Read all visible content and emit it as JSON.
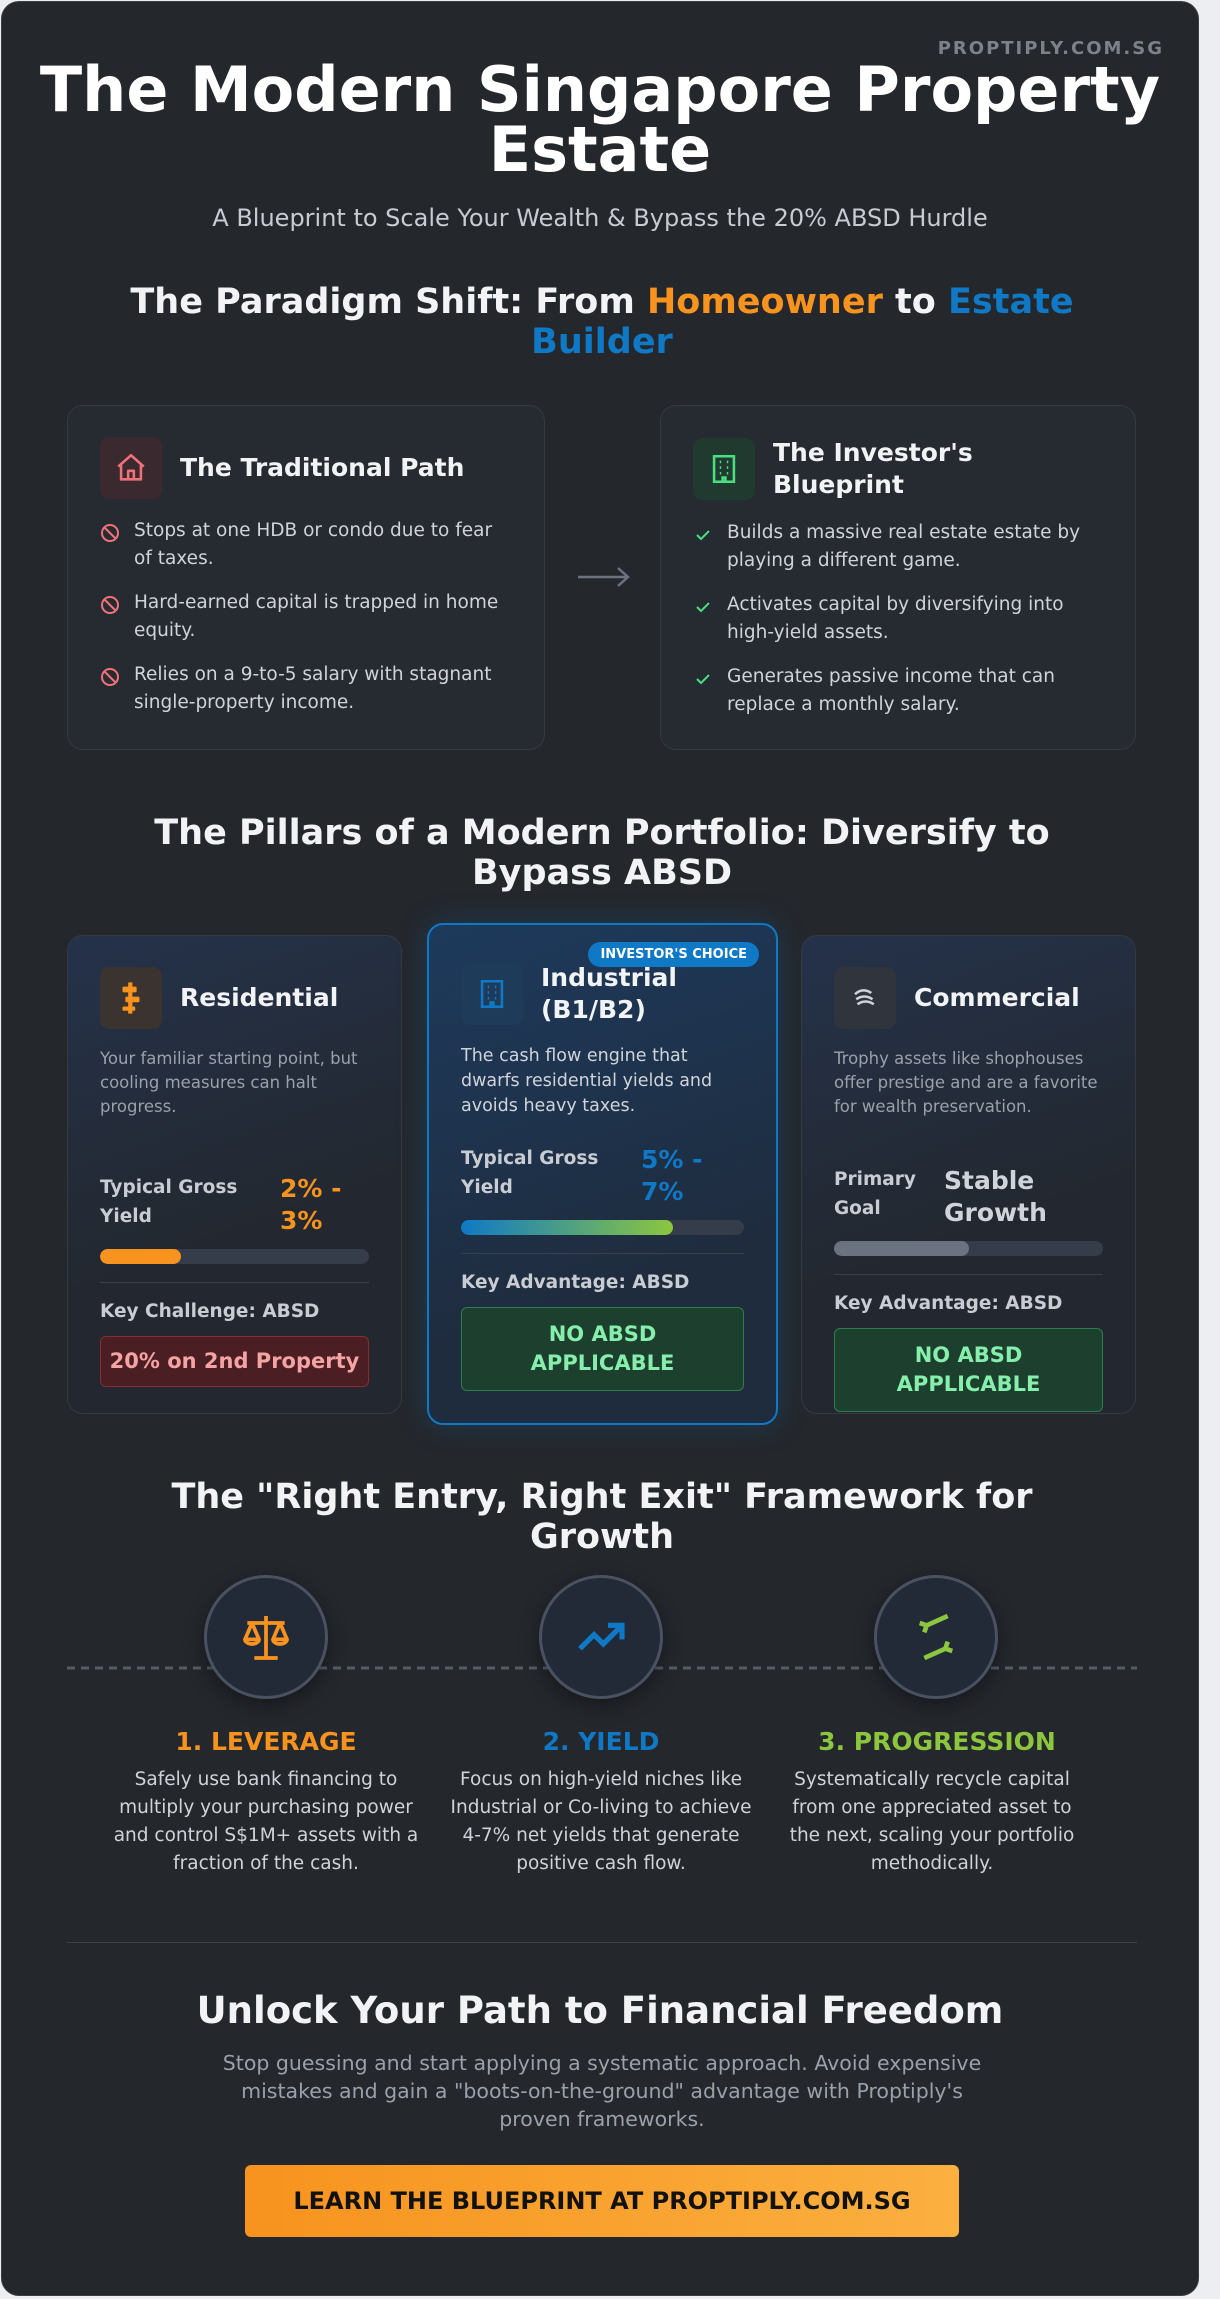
{
  "brand": "PROPTIPLY.COM.SG",
  "header": {
    "title": "The Modern Singapore Property Estate",
    "subtitle": "A Blueprint to Scale Your Wealth & Bypass the 20% ABSD Hurdle"
  },
  "shift": {
    "heading": [
      "The Paradigm Shift: From ",
      "Homeowner",
      " to ",
      "Estate Builder"
    ],
    "traditional": {
      "title": "The Traditional Path",
      "items": [
        "Stops at one HDB or condo due to fear of taxes.",
        "Hard-earned capital is trapped in home equity.",
        "Relies on a 9-to-5 salary with stagnant single-property income."
      ]
    },
    "investor": {
      "title": "The Investor's Blueprint",
      "items": [
        "Builds a massive real estate estate by playing a different game.",
        "Activates capital by diversifying into high-yield assets.",
        "Generates passive income that can replace a monthly salary."
      ]
    }
  },
  "pillars": {
    "heading": "The Pillars of a Modern Portfolio: Diversify to Bypass ABSD",
    "cards": [
      {
        "title": "Residential",
        "description": "Your familiar starting point, but cooling measures can halt progress.",
        "metric_label": "Typical Gross Yield",
        "metric_value": "2% - 3%",
        "key_label": "Key Challenge: ABSD",
        "key_value": "20% on 2nd Property"
      },
      {
        "badge": "INVESTOR'S CHOICE",
        "title": "Industrial (B1/B2)",
        "description": "The cash flow engine that dwarfs residential yields and avoids heavy taxes.",
        "metric_label": "Typical Gross Yield",
        "metric_value": "5% - 7%",
        "key_label": "Key Advantage: ABSD",
        "key_value": "NO ABSD APPLICABLE"
      },
      {
        "title": "Commercial",
        "description": "Trophy assets like shophouses offer prestige and are a favorite for wealth preservation.",
        "metric_label": "Primary Goal",
        "metric_value": "Stable Growth",
        "key_label": "Key Advantage: ABSD",
        "key_value": "NO ABSD APPLICABLE"
      }
    ]
  },
  "framework": {
    "heading": "The \"Right Entry, Right Exit\" Framework for Growth",
    "steps": [
      {
        "title": "1. LEVERAGE",
        "text": "Safely use bank financing to multiply your purchasing power and control S$1M+ assets with a fraction of the cash."
      },
      {
        "title": "2. YIELD",
        "text": "Focus on high-yield niches like Industrial or Co-living to achieve 4-7% net yields that generate positive cash flow."
      },
      {
        "title": "3. PROGRESSION",
        "text": "Systematically recycle capital from one appreciated asset to the next, scaling your portfolio methodically."
      }
    ]
  },
  "cta": {
    "heading": "Unlock Your Path to Financial Freedom",
    "text": "Stop guessing and start applying a systematic approach. Avoid expensive mistakes and gain a \"boots-on-the-ground\" advantage with Proptiply's proven frameworks.",
    "button": "LEARN THE BLUEPRINT AT PROPTIPLY.COM.SG"
  }
}
